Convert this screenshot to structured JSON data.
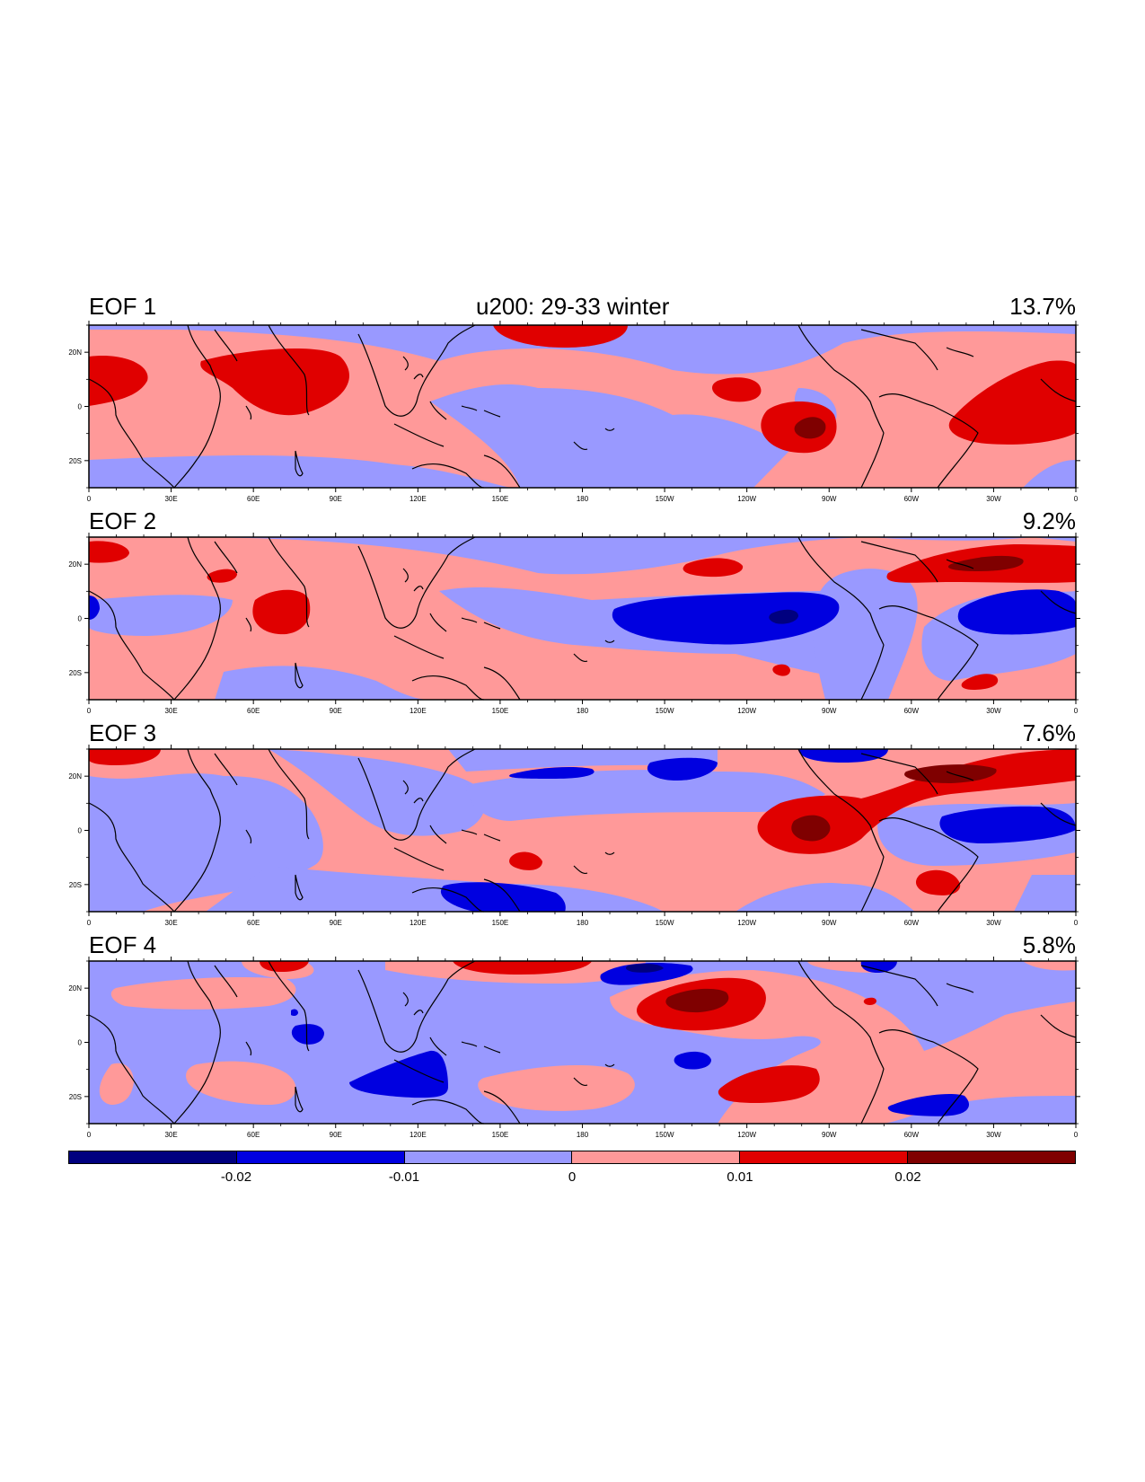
{
  "title": "u200: 29-33 winter",
  "panels": [
    {
      "label": "EOF 1",
      "variance": "13.7%"
    },
    {
      "label": "EOF 2",
      "variance": "9.2%"
    },
    {
      "label": "EOF 3",
      "variance": "7.6%"
    },
    {
      "label": "EOF 4",
      "variance": "5.8%"
    }
  ],
  "x_ticks": [
    "0",
    "30E",
    "60E",
    "90E",
    "120E",
    "150E",
    "180",
    "150W",
    "120W",
    "90W",
    "60W",
    "30W",
    "0"
  ],
  "y_ticks": [
    "20N",
    "0",
    "20S"
  ],
  "colorbar": {
    "colors": [
      "#00007f",
      "#0000e0",
      "#9999ff",
      "#ff9999",
      "#e00000",
      "#7f0000"
    ],
    "labels": [
      "-0.02",
      "-0.01",
      "0",
      "0.01",
      "0.02"
    ]
  },
  "chart_data": {
    "type": "heatmap",
    "title": "u200: 29-33 winter",
    "field": "EOF patterns of 200 hPa zonal wind",
    "lon_range": [
      0,
      360
    ],
    "lat_range": [
      -30,
      30
    ],
    "x_tick_labels": [
      "0",
      "30E",
      "60E",
      "90E",
      "120E",
      "150E",
      "180",
      "150W",
      "120W",
      "90W",
      "60W",
      "30W",
      "0"
    ],
    "y_tick_labels": [
      "20N",
      "0",
      "20S"
    ],
    "contour_levels": [
      -0.02,
      -0.01,
      0,
      0.01,
      0.02
    ],
    "panels": [
      {
        "name": "EOF 1",
        "variance_percent": 13.7,
        "anomalies": [
          {
            "lon": 10,
            "lat": 10,
            "value": 0.015
          },
          {
            "lon": 80,
            "lat": 10,
            "value": 0.015
          },
          {
            "lon": 183,
            "lat": 27,
            "value": 0.012
          },
          {
            "lon": 245,
            "lat": 6,
            "value": 0.012
          },
          {
            "lon": 270,
            "lat": -8,
            "value": 0.025
          },
          {
            "lon": 340,
            "lat": 3,
            "value": 0.015
          },
          {
            "lon": 165,
            "lat": 8,
            "value": -0.005
          },
          {
            "lon": 235,
            "lat": 22,
            "value": -0.005
          }
        ]
      },
      {
        "name": "EOF 2",
        "variance_percent": 9.2,
        "anomalies": [
          {
            "lon": 5,
            "lat": 27,
            "value": 0.015
          },
          {
            "lon": 52,
            "lat": 8,
            "value": 0.012
          },
          {
            "lon": 80,
            "lat": 1,
            "value": 0.015
          },
          {
            "lon": 240,
            "lat": 19,
            "value": 0.012
          },
          {
            "lon": 330,
            "lat": 20,
            "value": 0.025
          },
          {
            "lon": 270,
            "lat": -20,
            "value": 0.012
          },
          {
            "lon": 320,
            "lat": -25,
            "value": 0.012
          },
          {
            "lon": 230,
            "lat": 0,
            "value": -0.015
          },
          {
            "lon": 265,
            "lat": 0,
            "value": -0.025
          },
          {
            "lon": 348,
            "lat": 0,
            "value": -0.015
          }
        ]
      },
      {
        "name": "EOF 3",
        "variance_percent": 7.6,
        "anomalies": [
          {
            "lon": 10,
            "lat": 28,
            "value": 0.015
          },
          {
            "lon": 150,
            "lat": -10,
            "value": 0.015
          },
          {
            "lon": 270,
            "lat": 0,
            "value": 0.025
          },
          {
            "lon": 320,
            "lat": 18,
            "value": 0.025
          },
          {
            "lon": 315,
            "lat": -22,
            "value": 0.015
          },
          {
            "lon": 178,
            "lat": 20,
            "value": -0.015
          },
          {
            "lon": 240,
            "lat": 20,
            "value": -0.015
          },
          {
            "lon": 160,
            "lat": -27,
            "value": -0.015
          },
          {
            "lon": 330,
            "lat": 0,
            "value": -0.015
          },
          {
            "lon": 280,
            "lat": 26,
            "value": -0.015
          }
        ]
      },
      {
        "name": "EOF 4",
        "variance_percent": 5.8,
        "anomalies": [
          {
            "lon": 240,
            "lat": 15,
            "value": 0.025
          },
          {
            "lon": 260,
            "lat": -15,
            "value": 0.015
          },
          {
            "lon": 150,
            "lat": 28,
            "value": 0.012
          },
          {
            "lon": 75,
            "lat": 28,
            "value": 0.012
          },
          {
            "lon": 120,
            "lat": -13,
            "value": -0.015
          },
          {
            "lon": 210,
            "lat": 25,
            "value": -0.015
          },
          {
            "lon": 312,
            "lat": -22,
            "value": -0.015
          },
          {
            "lon": 65,
            "lat": 0,
            "value": -0.012
          },
          {
            "lon": 228,
            "lat": -9,
            "value": -0.012
          }
        ]
      }
    ]
  }
}
